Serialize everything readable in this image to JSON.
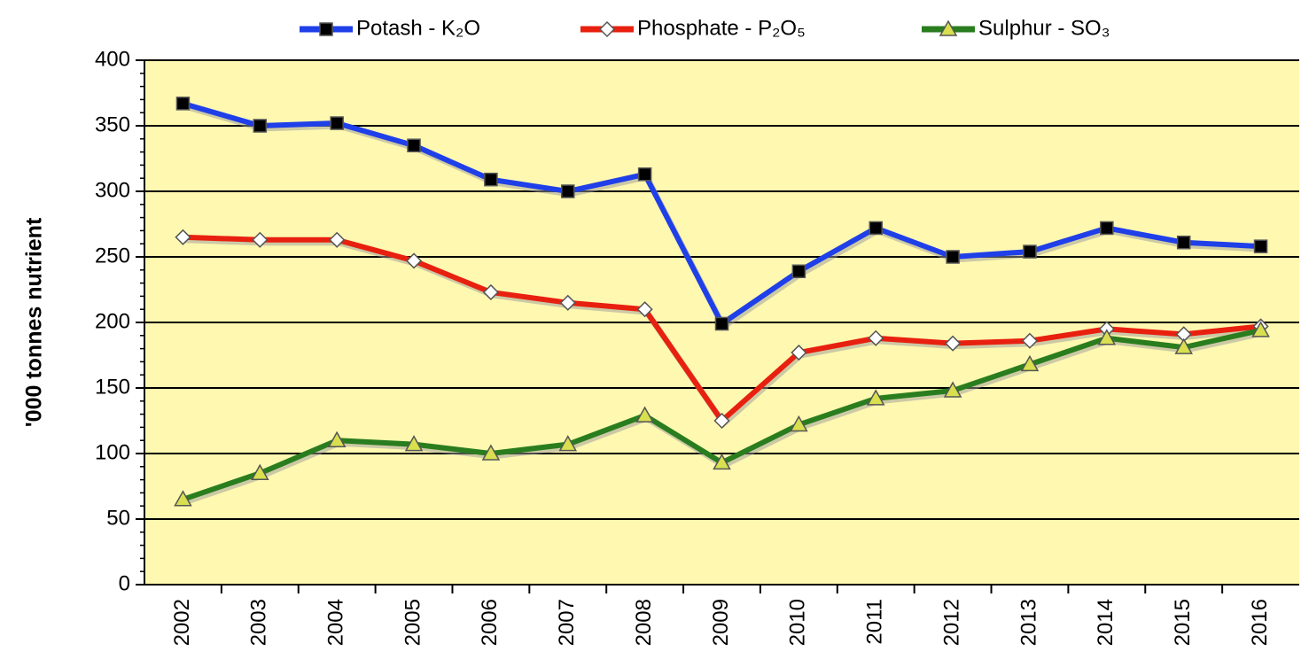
{
  "chart_data": {
    "type": "line",
    "y_label": "'000 tonnes nutrient",
    "categories": [
      "2002",
      "2003",
      "2004",
      "2005",
      "2006",
      "2007",
      "2008",
      "2009",
      "2010",
      "2011",
      "2012",
      "2013",
      "2014",
      "2015",
      "2016"
    ],
    "series": [
      {
        "name": "Potash - K₂O",
        "color": "#1f3fe8",
        "marker": "square",
        "marker_color": "#000000",
        "values": [
          367,
          350,
          352,
          335,
          309,
          300,
          313,
          199,
          239,
          272,
          250,
          254,
          272,
          261,
          258
        ]
      },
      {
        "name": "Phosphate - P₂O₅",
        "color": "#e8200f",
        "marker": "diamond",
        "marker_color": "#ffffff",
        "values": [
          265,
          263,
          263,
          247,
          223,
          215,
          210,
          125,
          177,
          188,
          184,
          186,
          195,
          191,
          197
        ]
      },
      {
        "name": "Sulphur - SO₃",
        "color": "#2a7d1e",
        "marker": "triangle",
        "marker_color": "#d8e050",
        "values": [
          65,
          85,
          110,
          107,
          100,
          107,
          129,
          93,
          122,
          142,
          148,
          168,
          188,
          181,
          194
        ]
      }
    ],
    "ylim": [
      0,
      400
    ],
    "yticks": [
      0,
      50,
      100,
      150,
      200,
      250,
      300,
      350,
      400
    ],
    "grid": true,
    "background": "#fff8b0",
    "legend": "top"
  }
}
